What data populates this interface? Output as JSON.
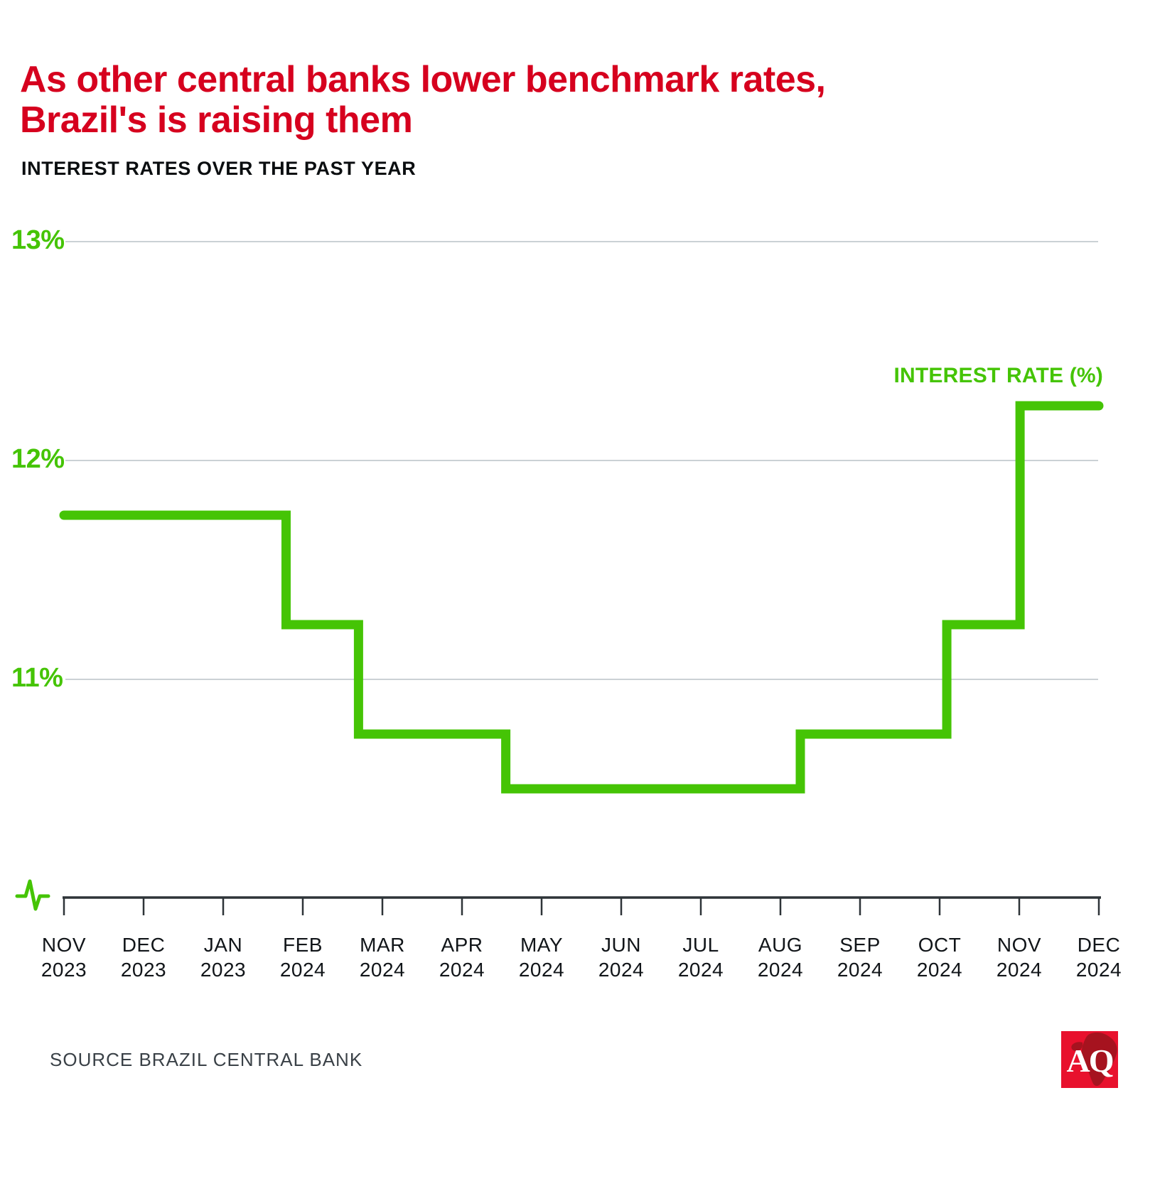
{
  "header": {
    "title_line1": "As other central banks lower benchmark rates,",
    "title_line2": "Brazil's is raising them",
    "subtitle": "INTEREST RATES OVER THE PAST YEAR"
  },
  "colors": {
    "title_red": "#D6001E",
    "line_green": "#45C405",
    "gridline_gray": "#CBD1D5",
    "axis_dark": "#2E3438",
    "month_label_dark": "#111519",
    "source_gray": "#3A4147",
    "logo_red": "#E8112D",
    "logo_silhouette_dark_red": "#A6131F"
  },
  "chart_data": {
    "type": "line",
    "subtype": "step",
    "title": "INTEREST RATES OVER THE PAST YEAR",
    "series_name": "INTEREST RATE (%)",
    "legend_position": "top-right",
    "grid": "horizontal",
    "xlabel": "",
    "ylabel": "INTEREST RATE (%)",
    "ylim": [
      10,
      13
    ],
    "axis_break_below": 10,
    "categories": [
      {
        "month": "NOV",
        "year": "2023"
      },
      {
        "month": "DEC",
        "year": "2023"
      },
      {
        "month": "JAN",
        "year": "2023"
      },
      {
        "month": "FEB",
        "year": "2024"
      },
      {
        "month": "MAR",
        "year": "2024"
      },
      {
        "month": "APR",
        "year": "2024"
      },
      {
        "month": "MAY",
        "year": "2024"
      },
      {
        "month": "JUN",
        "year": "2024"
      },
      {
        "month": "JUL",
        "year": "2024"
      },
      {
        "month": "AUG",
        "year": "2024"
      },
      {
        "month": "SEP",
        "year": "2024"
      },
      {
        "month": "OCT",
        "year": "2024"
      },
      {
        "month": "NOV",
        "year": "2024"
      },
      {
        "month": "DEC",
        "year": "2024"
      }
    ],
    "values": [
      11.75,
      11.75,
      11.75,
      11.25,
      10.75,
      10.75,
      10.5,
      10.5,
      10.5,
      10.5,
      10.75,
      11.25,
      12.25,
      12.25
    ],
    "y_ticks": [
      {
        "label": "13%",
        "value": 13
      },
      {
        "label": "12%",
        "value": 12
      },
      {
        "label": "11%",
        "value": 11
      }
    ],
    "step_geometry": {
      "start_value": 11.75,
      "end_month_pos": 13,
      "transitions": [
        {
          "month_pos": 2.79,
          "value": 11.25
        },
        {
          "month_pos": 3.7,
          "value": 10.75
        },
        {
          "month_pos": 5.55,
          "value": 10.5
        },
        {
          "month_pos": 9.25,
          "value": 10.75
        },
        {
          "month_pos": 11.09,
          "value": 11.25
        },
        {
          "month_pos": 12.01,
          "value": 12.25
        }
      ]
    }
  },
  "footer": {
    "source": "SOURCE BRAZIL CENTRAL BANK",
    "logo_text": "AQ"
  }
}
